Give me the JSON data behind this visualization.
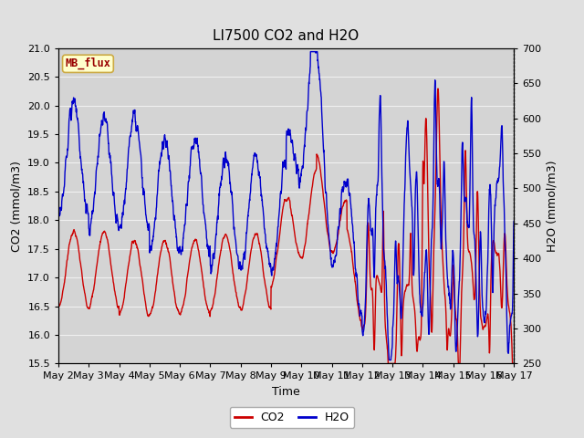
{
  "title": "LI7500 CO2 and H2O",
  "xlabel": "Time",
  "ylabel_left": "CO2 (mmol/m3)",
  "ylabel_right": "H2O (mmol/m3)",
  "ylim_left": [
    15.5,
    21.0
  ],
  "ylim_right": [
    250,
    700
  ],
  "yticks_left": [
    15.5,
    16.0,
    16.5,
    17.0,
    17.5,
    18.0,
    18.5,
    19.0,
    19.5,
    20.0,
    20.5,
    21.0
  ],
  "yticks_right": [
    250,
    300,
    350,
    400,
    450,
    500,
    550,
    600,
    650,
    700
  ],
  "x_tick_labels": [
    "May 2",
    "May 3",
    "May 4",
    "May 5",
    "May 6",
    "May 7",
    "May 8",
    "May 9",
    "May 10",
    "May 11",
    "May 12",
    "May 13",
    "May 14",
    "May 15",
    "May 16",
    "May 17"
  ],
  "co2_color": "#cc0000",
  "h2o_color": "#0000cc",
  "line_width": 1.0,
  "bg_color": "#e0e0e0",
  "plot_bg_color": "#d4d4d4",
  "grid_color": "#f0f0f0",
  "watermark_text": "MB_flux",
  "watermark_fg": "#990000",
  "watermark_bg": "#ffffcc",
  "watermark_border": "#ccaa44",
  "legend_co2": "CO2",
  "legend_h2o": "H2O",
  "title_fontsize": 11,
  "axis_fontsize": 9,
  "tick_fontsize": 8
}
